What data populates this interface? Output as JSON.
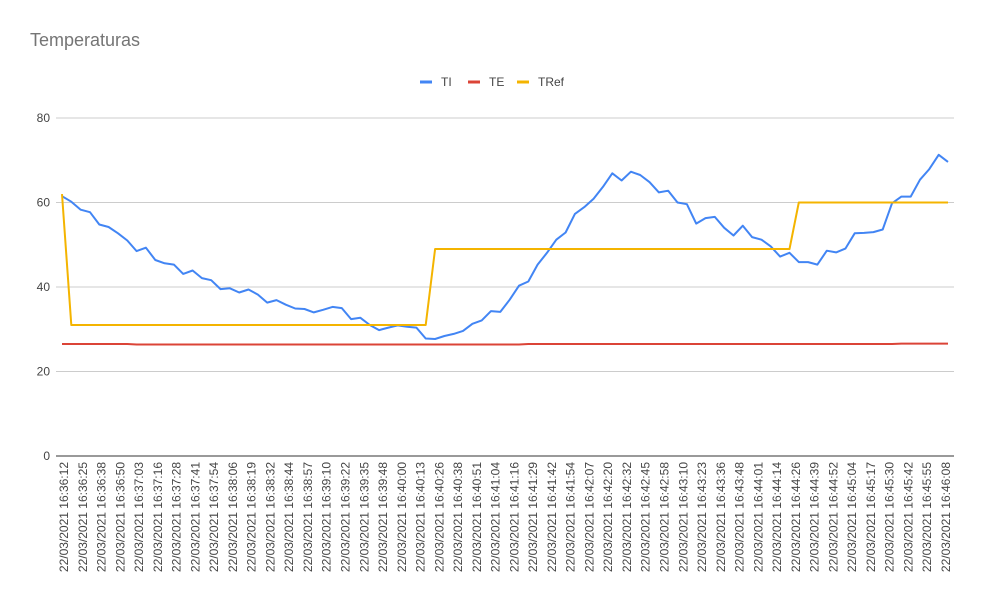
{
  "chart_data": {
    "type": "line",
    "title": "Temperaturas",
    "xlabel": "",
    "ylabel": "",
    "ylim": [
      0,
      80
    ],
    "yticks": [
      0,
      20,
      40,
      60,
      80
    ],
    "grid": true,
    "legend_position": "top",
    "x_tick_labels": [
      "22/03/2021 16:36:12",
      "22/03/2021 16:36:25",
      "22/03/2021 16:36:38",
      "22/03/2021 16:36:50",
      "22/03/2021 16:37:03",
      "22/03/2021 16:37:16",
      "22/03/2021 16:37:28",
      "22/03/2021 16:37:41",
      "22/03/2021 16:37:54",
      "22/03/2021 16:38:06",
      "22/03/2021 16:38:19",
      "22/03/2021 16:38:32",
      "22/03/2021 16:38:44",
      "22/03/2021 16:38:57",
      "22/03/2021 16:39:10",
      "22/03/2021 16:39:22",
      "22/03/2021 16:39:35",
      "22/03/2021 16:39:48",
      "22/03/2021 16:40:00",
      "22/03/2021 16:40:13",
      "22/03/2021 16:40:26",
      "22/03/2021 16:40:38",
      "22/03/2021 16:40:51",
      "22/03/2021 16:41:04",
      "22/03/2021 16:41:16",
      "22/03/2021 16:41:29",
      "22/03/2021 16:41:42",
      "22/03/2021 16:41:54",
      "22/03/2021 16:42:07",
      "22/03/2021 16:42:20",
      "22/03/2021 16:42:32",
      "22/03/2021 16:42:45",
      "22/03/2021 16:42:58",
      "22/03/2021 16:43:10",
      "22/03/2021 16:43:23",
      "22/03/2021 16:43:36",
      "22/03/2021 16:43:48",
      "22/03/2021 16:44:01",
      "22/03/2021 16:44:14",
      "22/03/2021 16:44:26",
      "22/03/2021 16:44:39",
      "22/03/2021 16:44:52",
      "22/03/2021 16:45:04",
      "22/03/2021 16:45:17",
      "22/03/2021 16:45:30",
      "22/03/2021 16:45:42",
      "22/03/2021 16:45:55",
      "22/03/2021 16:46:08"
    ],
    "series": [
      {
        "name": "TI",
        "color": "#4285f4",
        "values": [
          61.5,
          60.2,
          58.3,
          57.7,
          54.8,
          54.2,
          52.7,
          51.0,
          48.5,
          49.3,
          46.4,
          45.6,
          45.3,
          43.1,
          43.9,
          42.1,
          41.6,
          39.5,
          39.7,
          38.7,
          39.4,
          38.2,
          36.3,
          36.9,
          35.8,
          34.9,
          34.8,
          34.0,
          34.6,
          35.3,
          35.0,
          32.4,
          32.7,
          31.0,
          29.8,
          30.4,
          30.9,
          30.6,
          30.4,
          27.8,
          27.7,
          28.4,
          28.9,
          29.6,
          31.3,
          32.1,
          34.3,
          34.1,
          37.0,
          40.3,
          41.3,
          45.3,
          48.1,
          51.2,
          52.9,
          57.3,
          58.9,
          60.9,
          63.7,
          66.9,
          65.2,
          67.3,
          66.5,
          64.8,
          62.4,
          62.8,
          60.0,
          59.6,
          55.0,
          56.3,
          56.6,
          54.0,
          52.2,
          54.5,
          51.8,
          51.2,
          49.6,
          47.2,
          48.1,
          45.9,
          45.9,
          45.3,
          48.6,
          48.2,
          49.1,
          52.7,
          52.8,
          53.0,
          53.6,
          59.8,
          61.4,
          61.4,
          65.4,
          67.9,
          71.3,
          69.6
        ]
      },
      {
        "name": "TE",
        "color": "#db4437",
        "values": [
          26.5,
          26.5,
          26.5,
          26.5,
          26.5,
          26.5,
          26.5,
          26.5,
          26.4,
          26.4,
          26.4,
          26.4,
          26.4,
          26.4,
          26.4,
          26.4,
          26.4,
          26.4,
          26.4,
          26.4,
          26.4,
          26.4,
          26.4,
          26.4,
          26.4,
          26.4,
          26.4,
          26.4,
          26.4,
          26.4,
          26.4,
          26.4,
          26.4,
          26.4,
          26.4,
          26.4,
          26.4,
          26.4,
          26.4,
          26.4,
          26.4,
          26.4,
          26.4,
          26.4,
          26.4,
          26.4,
          26.4,
          26.4,
          26.4,
          26.4,
          26.5,
          26.5,
          26.5,
          26.5,
          26.5,
          26.5,
          26.5,
          26.5,
          26.5,
          26.5,
          26.5,
          26.5,
          26.5,
          26.5,
          26.5,
          26.5,
          26.5,
          26.5,
          26.5,
          26.5,
          26.5,
          26.5,
          26.5,
          26.5,
          26.5,
          26.5,
          26.5,
          26.5,
          26.5,
          26.5,
          26.5,
          26.5,
          26.5,
          26.5,
          26.5,
          26.5,
          26.5,
          26.5,
          26.5,
          26.5,
          26.6,
          26.6,
          26.6,
          26.6,
          26.6,
          26.6
        ]
      },
      {
        "name": "TRef",
        "color": "#f4b400",
        "values": [
          62,
          31,
          31,
          31,
          31,
          31,
          31,
          31,
          31,
          31,
          31,
          31,
          31,
          31,
          31,
          31,
          31,
          31,
          31,
          31,
          31,
          31,
          31,
          31,
          31,
          31,
          31,
          31,
          31,
          31,
          31,
          31,
          31,
          31,
          31,
          31,
          31,
          31,
          31,
          31,
          49,
          49,
          49,
          49,
          49,
          49,
          49,
          49,
          49,
          49,
          49,
          49,
          49,
          49,
          49,
          49,
          49,
          49,
          49,
          49,
          49,
          49,
          49,
          49,
          49,
          49,
          49,
          49,
          49,
          49,
          49,
          49,
          49,
          49,
          49,
          49,
          49,
          49,
          49,
          60,
          60,
          60,
          60,
          60,
          60,
          60,
          60,
          60,
          60,
          60,
          60,
          60,
          60,
          60,
          60,
          60
        ]
      }
    ]
  }
}
